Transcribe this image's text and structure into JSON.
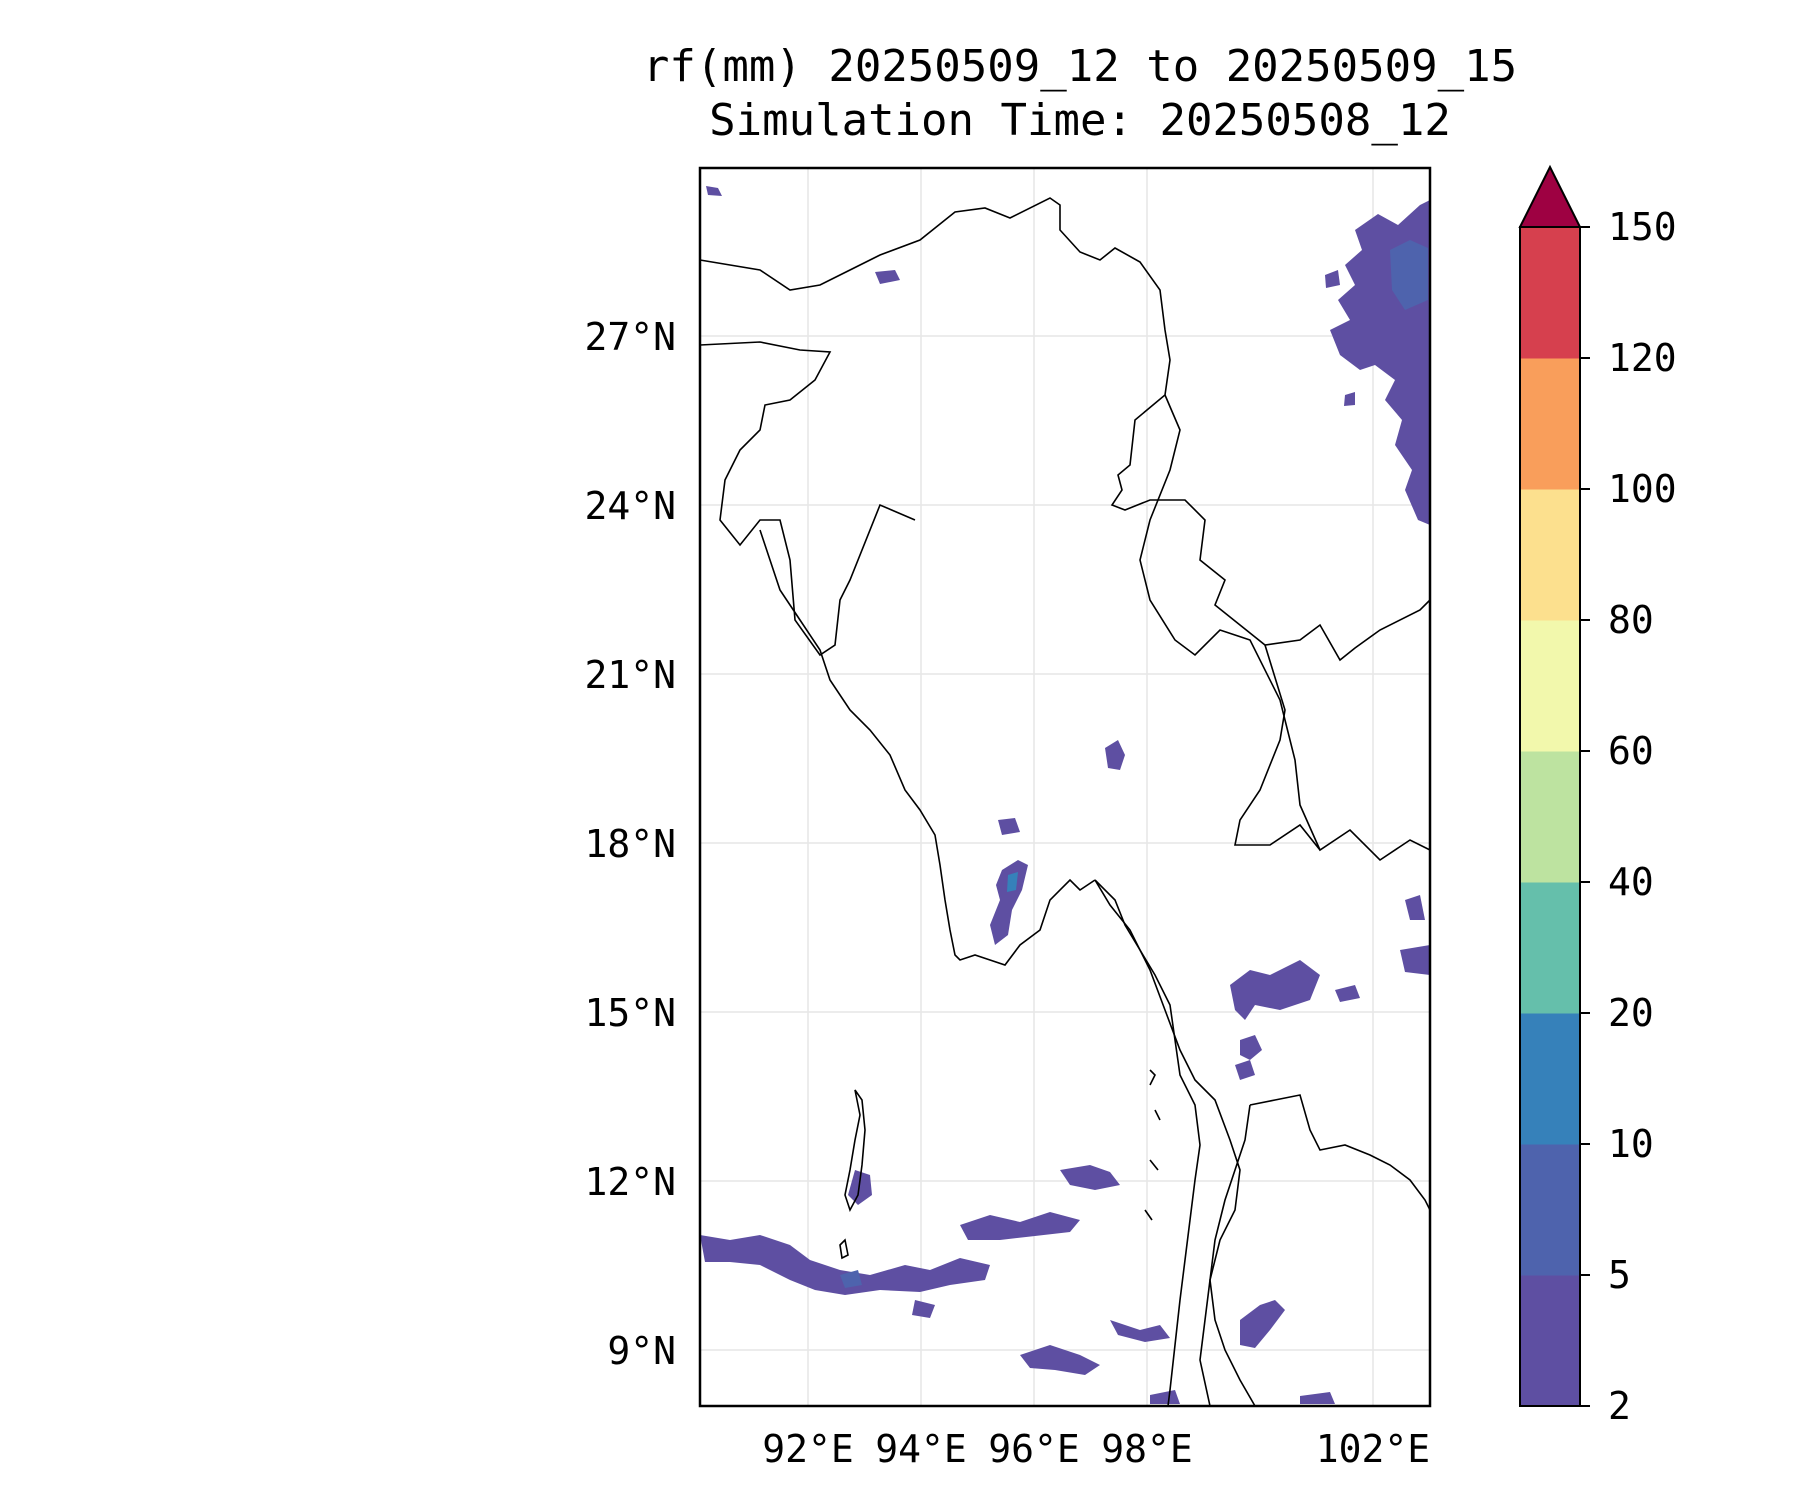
{
  "title": {
    "line1": "rf(mm) 20250509_12 to 20250509_15",
    "line2": "Simulation Time: 20250508_12"
  },
  "map": {
    "lat_ticks": [
      "27°N",
      "24°N",
      "21°N",
      "18°N",
      "15°N",
      "12°N",
      "9°N"
    ],
    "lon_ticks": [
      "92°E",
      "94°E",
      "96°E",
      "98°E",
      "102°E"
    ]
  },
  "colorbar": {
    "levels": [
      "2",
      "5",
      "10",
      "20",
      "40",
      "60",
      "80",
      "100",
      "120",
      "150"
    ],
    "colors": [
      "#5e4fa2",
      "#4e63ad",
      "#3681ba",
      "#65bfab",
      "#bde3a0",
      "#f2f8ac",
      "#fce08e",
      "#f99e5b",
      "#d6404e",
      "#9e0142"
    ],
    "extend": "max"
  }
}
